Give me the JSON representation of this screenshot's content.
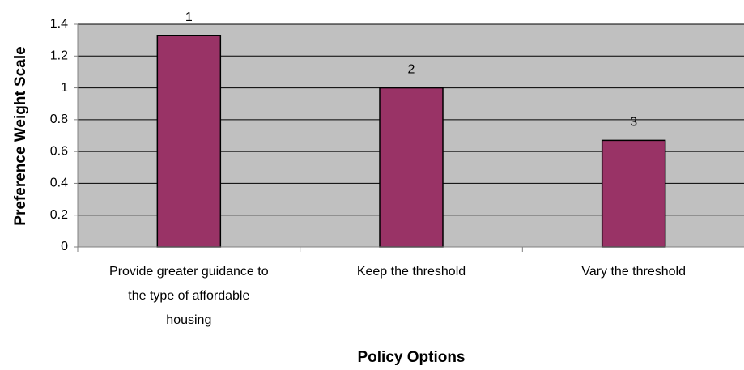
{
  "chart_data": {
    "type": "bar",
    "categories": [
      [
        "Provide greater guidance to",
        "the type of affordable",
        "housing"
      ],
      [
        "Keep the threshold"
      ],
      [
        "Vary the threshold"
      ]
    ],
    "values": [
      1.33,
      1.0,
      0.67
    ],
    "data_labels": [
      "1",
      "2",
      "3"
    ],
    "xlabel": "Policy Options",
    "ylabel": "Preference Weight Scale",
    "ylim": [
      0,
      1.4
    ],
    "yticks": [
      0,
      0.2,
      0.4,
      0.6,
      0.8,
      1,
      1.2,
      1.4
    ],
    "grid": true,
    "legend": "none",
    "colors": {
      "bar_fill": "#993366",
      "bar_stroke": "#000000",
      "plot_background": "#C0C0C0",
      "gridline": "#000000",
      "axis": "#808080"
    }
  }
}
